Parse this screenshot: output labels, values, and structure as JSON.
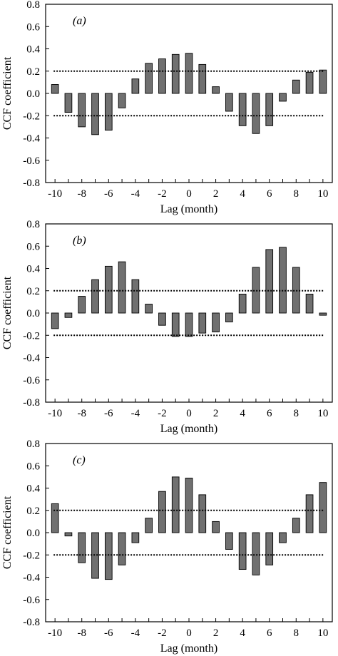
{
  "chart_data": [
    {
      "type": "bar",
      "panel_label": "(a)",
      "xlabel": "Lag (month)",
      "ylabel": "CCF coefficient",
      "x": [
        -10,
        -9,
        -8,
        -7,
        -6,
        -5,
        -4,
        -3,
        -2,
        -1,
        0,
        1,
        2,
        3,
        4,
        5,
        6,
        7,
        8,
        9,
        10
      ],
      "values": [
        0.08,
        -0.17,
        -0.3,
        -0.37,
        -0.33,
        -0.13,
        0.13,
        0.27,
        0.31,
        0.35,
        0.36,
        0.26,
        0.06,
        -0.16,
        -0.29,
        -0.36,
        -0.29,
        -0.07,
        0.12,
        0.19,
        0.21
      ],
      "confidence_bounds": [
        0.2,
        -0.2
      ],
      "ylim": [
        -0.8,
        0.8
      ],
      "xticks": [
        "-10",
        "-8",
        "-6",
        "-4",
        "-2",
        "0",
        "2",
        "4",
        "6",
        "8",
        "10"
      ],
      "yticks": [
        "0.8",
        "0.6",
        "0.4",
        "0.2",
        "0.0",
        "-0.2",
        "-0.4",
        "-0.6",
        "-0.8"
      ],
      "bar_color": "#707070",
      "grid": false
    },
    {
      "type": "bar",
      "panel_label": "(b)",
      "xlabel": "Lag (month)",
      "ylabel": "CCF coefficient",
      "x": [
        -10,
        -9,
        -8,
        -7,
        -6,
        -5,
        -4,
        -3,
        -2,
        -1,
        0,
        1,
        2,
        3,
        4,
        5,
        6,
        7,
        8,
        9,
        10
      ],
      "values": [
        -0.14,
        -0.04,
        0.15,
        0.3,
        0.42,
        0.46,
        0.3,
        0.08,
        -0.11,
        -0.21,
        -0.21,
        -0.18,
        -0.17,
        -0.08,
        0.17,
        0.41,
        0.57,
        0.59,
        0.41,
        0.17,
        -0.02
      ],
      "confidence_bounds": [
        0.2,
        -0.2
      ],
      "ylim": [
        -0.8,
        0.8
      ],
      "xticks": [
        "-10",
        "-8",
        "-6",
        "-4",
        "-2",
        "0",
        "2",
        "4",
        "6",
        "8",
        "10"
      ],
      "yticks": [
        "0.8",
        "0.6",
        "0.4",
        "0.2",
        "0.0",
        "-0.2",
        "-0.4",
        "-0.6",
        "-0.8"
      ],
      "bar_color": "#707070",
      "grid": false
    },
    {
      "type": "bar",
      "panel_label": "(c)",
      "xlabel": "Lag (month)",
      "ylabel": "CCF coefficient",
      "x": [
        -10,
        -9,
        -8,
        -7,
        -6,
        -5,
        -4,
        -3,
        -2,
        -1,
        0,
        1,
        2,
        3,
        4,
        5,
        6,
        7,
        8,
        9,
        10
      ],
      "values": [
        0.26,
        -0.03,
        -0.27,
        -0.41,
        -0.42,
        -0.29,
        -0.09,
        0.13,
        0.37,
        0.5,
        0.49,
        0.34,
        0.1,
        -0.15,
        -0.33,
        -0.38,
        -0.29,
        -0.09,
        0.13,
        0.34,
        0.45
      ],
      "confidence_bounds": [
        0.2,
        -0.2
      ],
      "ylim": [
        -0.8,
        0.8
      ],
      "xticks": [
        "-10",
        "-8",
        "-6",
        "-4",
        "-2",
        "0",
        "2",
        "4",
        "6",
        "8",
        "10"
      ],
      "yticks": [
        "0.8",
        "0.6",
        "0.4",
        "0.2",
        "0.0",
        "-0.2",
        "-0.4",
        "-0.6",
        "-0.8"
      ],
      "bar_color": "#707070",
      "grid": false
    }
  ]
}
